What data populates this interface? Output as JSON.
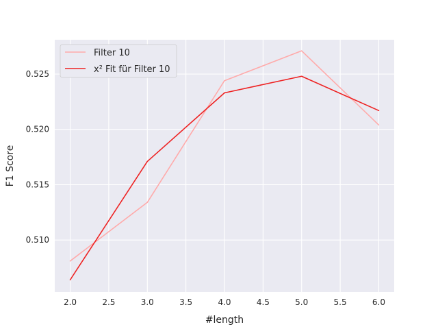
{
  "chart_data": {
    "type": "line",
    "title": "",
    "xlabel": "#length",
    "ylabel": "F1 Score",
    "x": [
      2.0,
      3.0,
      4.0,
      5.0,
      6.0
    ],
    "xlim": [
      1.8,
      6.2
    ],
    "ylim": [
      0.5053,
      0.5281
    ],
    "x_ticks": [
      "2.0",
      "2.5",
      "3.0",
      "3.5",
      "4.0",
      "4.5",
      "5.0",
      "5.5",
      "6.0"
    ],
    "y_ticks": [
      "0.510",
      "0.515",
      "0.520",
      "0.525"
    ],
    "grid": true,
    "legend_position": "top-left",
    "background": "#eaeaf2",
    "series": [
      {
        "name": "Filter 10",
        "color": "#ffaaaa",
        "values": [
          0.5081,
          0.5134,
          0.5244,
          0.5271,
          0.5204
        ]
      },
      {
        "name": "x² Fit für Filter 10",
        "color": "#ee2222",
        "values": [
          0.5064,
          0.5171,
          0.5233,
          0.5248,
          0.5217
        ]
      }
    ]
  }
}
